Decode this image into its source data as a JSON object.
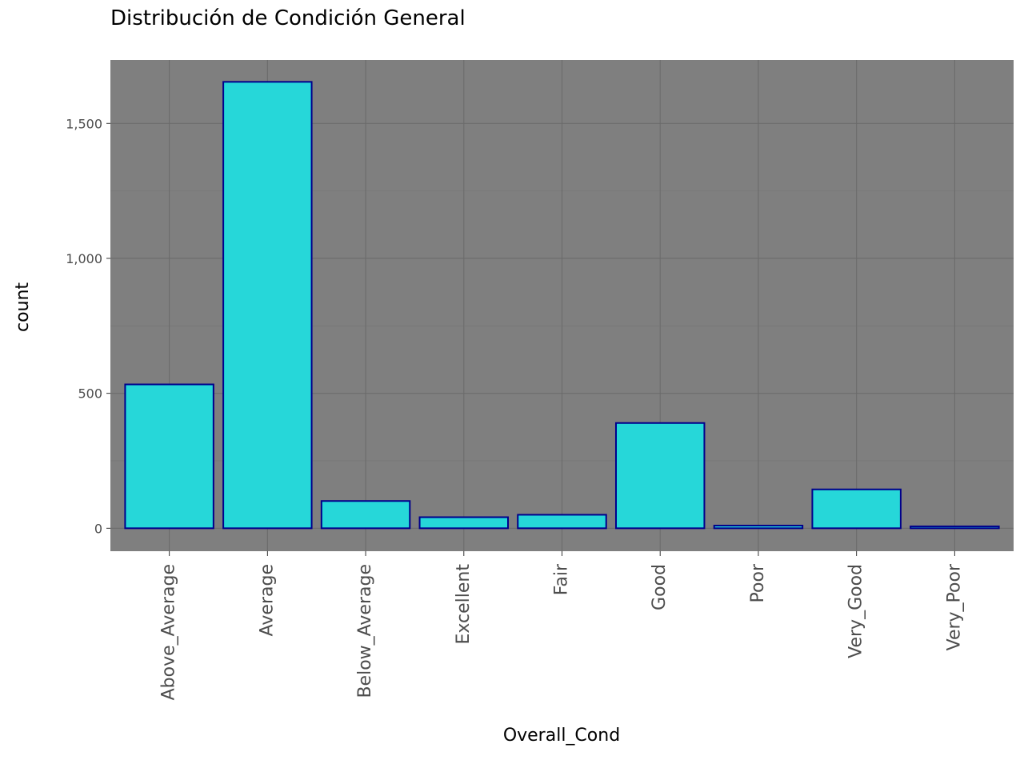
{
  "chart_data": {
    "type": "bar",
    "title": "Distribución de Condición General",
    "xlabel": "Overall_Cond",
    "ylabel": "count",
    "categories": [
      "Above_Average",
      "Average",
      "Below_Average",
      "Excellent",
      "Fair",
      "Good",
      "Poor",
      "Very_Good",
      "Very_Poor"
    ],
    "values": [
      533,
      1654,
      101,
      41,
      50,
      390,
      10,
      144,
      7
    ],
    "ylim": [
      -85,
      1735
    ],
    "yticks": [
      0,
      500,
      1000,
      1500
    ],
    "ytick_labels": [
      "0",
      "500",
      "1,000",
      "1,500"
    ],
    "grid": true,
    "legend": "none",
    "colors": {
      "bar_fill": "#26d7d9",
      "bar_outline": "#00008b",
      "panel_background": "#7f7f7f",
      "grid_major": "#6b6b6b",
      "grid_minor": "#757575"
    }
  }
}
